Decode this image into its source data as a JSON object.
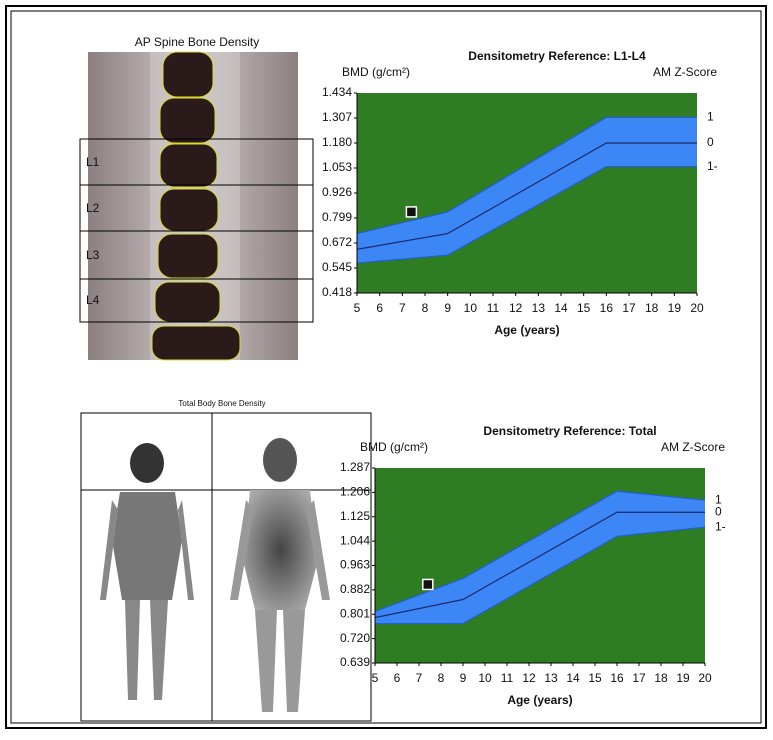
{
  "images": [
    {
      "title": "AP Spine Bone Density",
      "labels": [
        "L1",
        "L2",
        "L3",
        "L4"
      ]
    },
    {
      "title": "Total Body Bone Density"
    }
  ],
  "chart_data": [
    {
      "type": "line",
      "title": "Densitometry Reference: L1-L4",
      "ylabel": "BMD (g/cm²)",
      "y2label": "AM Z-Score",
      "xlabel": "Age (years)",
      "x": [
        5,
        9,
        16,
        20
      ],
      "series": [
        {
          "name": "1",
          "color": "#1f5fd0",
          "values": [
            0.72,
            0.83,
            1.31,
            1.31
          ]
        },
        {
          "name": "0",
          "color": "#1a2a6c",
          "values": [
            0.64,
            0.72,
            1.18,
            1.18
          ]
        },
        {
          "name": "1-",
          "color": "#1f5fd0",
          "values": [
            0.57,
            0.61,
            1.06,
            1.06
          ]
        }
      ],
      "band_color": "#3d86f5",
      "background": "#2f7d22",
      "patient": {
        "x": 7.4,
        "y": 0.83
      },
      "xlim": [
        5,
        20
      ],
      "xticks": [
        5,
        6,
        7,
        8,
        9,
        10,
        11,
        12,
        13,
        14,
        15,
        16,
        17,
        18,
        19,
        20
      ],
      "ylim": [
        0.418,
        1.434
      ],
      "yticks": [
        0.418,
        0.545,
        0.672,
        0.799,
        0.926,
        1.053,
        {
          "value": 1.18,
          "label": "1.180"
        },
        1.307,
        1.434
      ]
    },
    {
      "type": "line",
      "title": "Densitometry Reference: Total",
      "ylabel": "BMD (g/cm²)",
      "y2label": "AM Z-Score",
      "xlabel": "Age (years)",
      "x": [
        5,
        9,
        16,
        20
      ],
      "series": [
        {
          "name": "1",
          "color": "#1f5fd0",
          "values": [
            0.81,
            0.92,
            1.21,
            1.18
          ]
        },
        {
          "name": "0",
          "color": "#1a2a6c",
          "values": [
            0.79,
            0.85,
            1.14,
            1.14
          ]
        },
        {
          "name": "1-",
          "color": "#1f5fd0",
          "values": [
            0.77,
            0.77,
            1.06,
            1.09
          ]
        }
      ],
      "band_color": "#3d86f5",
      "background": "#2f7d22",
      "patient": {
        "x": 7.4,
        "y": 0.9
      },
      "xlim": [
        5,
        20
      ],
      "xticks": [
        5,
        6,
        7,
        8,
        9,
        10,
        11,
        12,
        13,
        14,
        15,
        16,
        17,
        18,
        19,
        20
      ],
      "ylim": [
        0.639,
        1.287
      ],
      "yticks": [
        0.639,
        {
          "value": 0.72,
          "label": "0.720"
        },
        0.801,
        0.882,
        0.963,
        1.044,
        1.125,
        1.206,
        1.287
      ]
    }
  ]
}
